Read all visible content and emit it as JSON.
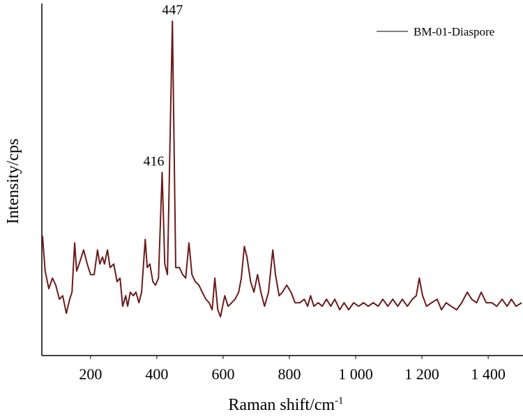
{
  "chart_data": {
    "type": "line",
    "x_label": {
      "text": "Raman shift/cm",
      "superscript": "-1"
    },
    "y_label": "Intensity/cps",
    "legend_position": "upper right",
    "xlim": [
      53,
      1505
    ],
    "ylim": [
      0,
      100
    ],
    "xticks": [
      200,
      400,
      600,
      800,
      {
        "value": 1000,
        "label": "1 000"
      },
      {
        "value": 1200,
        "label": "1 200"
      },
      {
        "value": 1400,
        "label": "1 400"
      }
    ],
    "annotations": [
      {
        "label": "447",
        "x": 447,
        "y": 95
      },
      {
        "label": "416",
        "x": 416,
        "y": 52
      }
    ],
    "series": [
      {
        "name": "BM-01-Diaspore",
        "color": "#6b1a1a",
        "x": [
          55,
          63,
          74,
          85,
          95,
          106,
          116,
          127,
          137,
          144,
          152,
          158,
          169,
          179,
          190,
          200,
          211,
          221,
          228,
          236,
          242,
          251,
          259,
          270,
          280,
          289,
          297,
          306,
          312,
          320,
          329,
          337,
          346,
          354,
          365,
          371,
          379,
          388,
          396,
          405,
          416,
          424,
          432,
          447,
          457,
          468,
          478,
          487,
          497,
          506,
          516,
          527,
          537,
          548,
          558,
          567,
          575,
          584,
          592,
          605,
          615,
          626,
          636,
          647,
          655,
          664,
          672,
          683,
          693,
          704,
          714,
          725,
          737,
          750,
          758,
          769,
          779,
          792,
          805,
          817,
          832,
          845,
          855,
          864,
          874,
          887,
          899,
          912,
          925,
          937,
          952,
          965,
          979,
          994,
          1009,
          1024,
          1038,
          1053,
          1068,
          1082,
          1097,
          1112,
          1127,
          1141,
          1156,
          1171,
          1183,
          1192,
          1202,
          1214,
          1229,
          1246,
          1259,
          1273,
          1288,
          1305,
          1320,
          1337,
          1350,
          1365,
          1379,
          1394,
          1411,
          1426,
          1442,
          1457,
          1470,
          1484,
          1501
        ],
        "values": [
          34,
          24,
          19,
          22,
          20,
          16,
          17,
          12,
          16,
          18,
          32,
          24,
          27,
          30,
          26,
          23,
          23,
          30,
          26,
          28,
          26,
          30,
          25,
          26,
          21,
          22,
          14,
          17,
          14,
          18,
          17,
          18,
          15,
          18,
          33,
          25,
          26,
          21,
          20,
          22,
          52,
          26,
          23,
          95,
          25,
          25,
          23,
          22,
          32,
          23,
          21,
          20,
          18,
          16,
          15,
          13,
          22,
          13,
          11,
          17,
          14,
          15,
          16,
          18,
          22,
          31,
          28,
          21,
          18,
          23,
          18,
          14,
          18,
          30,
          23,
          17,
          18,
          20,
          18,
          15,
          15,
          16,
          14,
          17,
          14,
          15,
          14,
          16,
          14,
          16,
          13,
          15,
          13,
          15,
          14,
          15,
          14,
          15,
          14,
          16,
          14,
          16,
          14,
          16,
          14,
          16,
          17,
          22,
          17,
          14,
          15,
          16,
          13,
          15,
          14,
          13,
          15,
          18,
          16,
          15,
          18,
          15,
          15,
          14,
          16,
          14,
          16,
          14,
          15
        ]
      }
    ]
  }
}
